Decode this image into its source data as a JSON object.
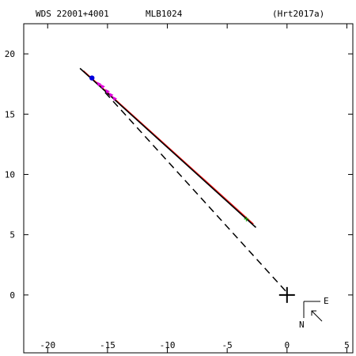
{
  "header": {
    "wds_id": "WDS 22001+4001",
    "discoverer": "MLB1024",
    "reference": "(Hrt2017a)"
  },
  "compass": {
    "east_label": "E",
    "north_label": "N"
  },
  "colors": {
    "orbit": "#000000",
    "residual": "#ff0000",
    "measure_magenta": "#e000e0",
    "measure_blue": "#0000dd",
    "measure_green": "#00aa00"
  },
  "chart_data": {
    "type": "scatter",
    "title": "",
    "xlabel": "",
    "ylabel": "",
    "xlim": [
      -22,
      5.5
    ],
    "ylim": [
      -4.8,
      22.5
    ],
    "x_ticks": [
      -20,
      -15,
      -10,
      -5,
      0,
      5
    ],
    "y_ticks": [
      0,
      5,
      10,
      15,
      20
    ],
    "grid": false,
    "primary_star": [
      0,
      0
    ],
    "orbit_track": {
      "x": [
        -17.3,
        -2.6
      ],
      "y": [
        18.8,
        5.6
      ]
    },
    "node_line": {
      "x": [
        -15.2,
        0
      ],
      "y": [
        16.8,
        0.2
      ]
    },
    "residual_line": {
      "x": [
        -17.0,
        -2.8
      ],
      "y": [
        18.6,
        5.9
      ]
    },
    "measures": [
      {
        "x": -16.3,
        "y": 18.0,
        "type": "blue-dot"
      },
      {
        "x": -15.7,
        "y": 17.5,
        "type": "magenta"
      },
      {
        "x": -15.4,
        "y": 17.3,
        "type": "magenta"
      },
      {
        "x": -15.0,
        "y": 16.9,
        "type": "magenta"
      },
      {
        "x": -14.7,
        "y": 16.6,
        "type": "magenta"
      },
      {
        "x": -14.4,
        "y": 16.3,
        "type": "magenta"
      },
      {
        "x": -3.4,
        "y": 6.3,
        "type": "green-plus"
      }
    ]
  }
}
